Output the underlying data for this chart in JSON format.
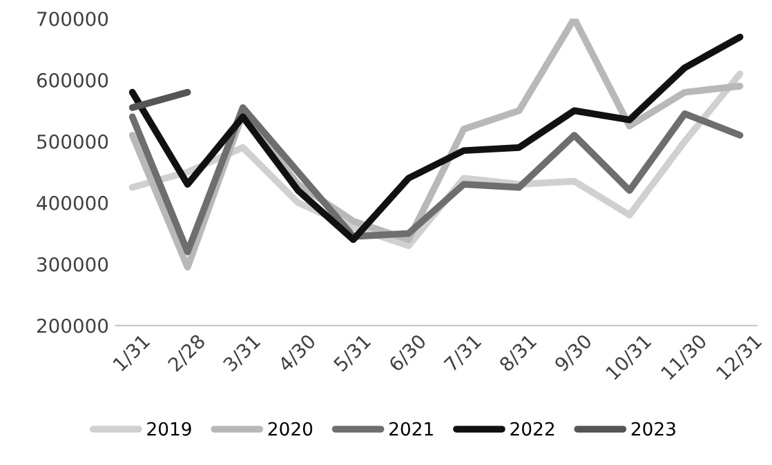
{
  "chart_data": {
    "type": "line",
    "categories": [
      "1/31",
      "2/28",
      "3/31",
      "4/30",
      "5/31",
      "6/30",
      "7/31",
      "8/31",
      "9/30",
      "10/31",
      "11/30",
      "12/31"
    ],
    "series": [
      {
        "name": "2019",
        "color": "#d0d0d0",
        "values": [
          425000,
          450000,
          490000,
          400000,
          360000,
          330000,
          440000,
          430000,
          435000,
          380000,
          500000,
          610000
        ]
      },
      {
        "name": "2020",
        "color": "#b8b8b8",
        "values": [
          510000,
          295000,
          545000,
          430000,
          370000,
          340000,
          520000,
          550000,
          700000,
          525000,
          580000,
          590000
        ]
      },
      {
        "name": "2021",
        "color": "#6e6e6e",
        "values": [
          540000,
          320000,
          555000,
          450000,
          345000,
          350000,
          430000,
          425000,
          510000,
          420000,
          545000,
          510000
        ]
      },
      {
        "name": "2022",
        "color": "#111111",
        "values": [
          580000,
          430000,
          540000,
          420000,
          340000,
          440000,
          485000,
          490000,
          550000,
          535000,
          620000,
          670000
        ]
      },
      {
        "name": "2023",
        "color": "#555555",
        "values": [
          555000,
          580000,
          null,
          null,
          null,
          null,
          null,
          null,
          null,
          null,
          null,
          null
        ]
      }
    ],
    "ylim": [
      200000,
      700000
    ],
    "yticks": [
      200000,
      300000,
      400000,
      500000,
      600000,
      700000
    ],
    "grid": false,
    "legend": "bottom",
    "line_style": "solid",
    "marker": "none"
  }
}
